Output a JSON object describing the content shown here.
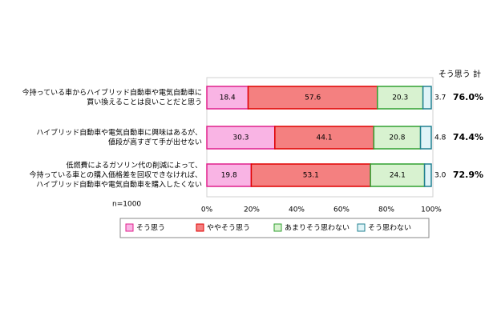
{
  "chart_data": {
    "type": "stacked-bar-horizontal",
    "categories": [
      [
        "今持っている車からハイブリッド自動車や電気自動車に",
        "買い換えることは良いことだと思う"
      ],
      [
        "ハイブリッド自動車や電気自動車に興味はあるが、",
        "値段が高すぎて手が出せない"
      ],
      [
        "低燃費によるガソリン代の削減によって、",
        "今持っている車との購入価格差を回収できなければ、",
        "ハイブリッド自動車や電気自動車を購入したくない"
      ]
    ],
    "series": [
      {
        "name": "そう思う",
        "color": "#f9b4e4",
        "border": "#e0208c",
        "values": [
          18.4,
          30.3,
          19.8
        ]
      },
      {
        "name": "ややそう思う",
        "color": "#f48080",
        "border": "#e00000",
        "values": [
          57.6,
          44.1,
          53.1
        ]
      },
      {
        "name": "あまりそう思わない",
        "color": "#d8f2d0",
        "border": "#30a030",
        "values": [
          20.3,
          20.8,
          24.1
        ]
      },
      {
        "name": "そう思わない",
        "color": "#e0f4f8",
        "border": "#208090",
        "values": [
          3.7,
          4.8,
          3.0
        ],
        "value_labels": [
          "3.7",
          "4.8",
          "3.0"
        ]
      }
    ],
    "xlim": [
      0,
      100
    ],
    "xticks": [
      {
        "value": 0,
        "label": "0%"
      },
      {
        "value": 20,
        "label": "20%"
      },
      {
        "value": 40,
        "label": "40%"
      },
      {
        "value": 60,
        "label": "60%"
      },
      {
        "value": 80,
        "label": "80%"
      },
      {
        "value": 100,
        "label": "100%"
      }
    ],
    "note": "n=1000",
    "totals": {
      "title": "そう思う 計",
      "color": "#e00000",
      "values": [
        76.0,
        74.4,
        72.9
      ],
      "value_labels": [
        "76.0%",
        "74.4%",
        "72.9%"
      ]
    }
  }
}
